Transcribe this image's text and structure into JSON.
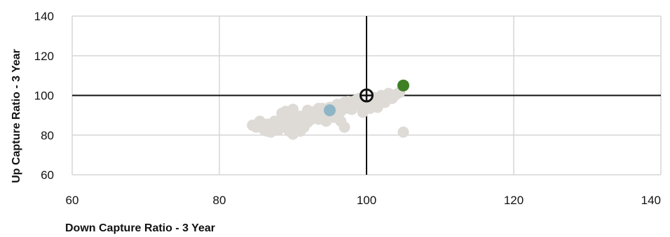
{
  "chart_data": {
    "type": "scatter",
    "title": "",
    "xlabel": "Down Capture Ratio - 3 Year",
    "ylabel": "Up Capture Ratio - 3 Year",
    "xlim": [
      60,
      140
    ],
    "ylim": [
      60,
      140
    ],
    "x_ticks": [
      60,
      80,
      100,
      120,
      140
    ],
    "y_ticks": [
      60,
      80,
      100,
      120,
      140
    ],
    "grid": true,
    "reference_lines": {
      "x": 100,
      "y": 100
    },
    "colors": {
      "peer": "#dedad6",
      "highlight_green": "#3f8024",
      "highlight_blue": "#8eb5c6",
      "benchmark": "#111111"
    },
    "highlight_points": [
      {
        "x": 105.0,
        "y": 105.0,
        "color": "#3f8024"
      },
      {
        "x": 95.0,
        "y": 92.5,
        "color": "#8eb5c6"
      }
    ],
    "benchmark_point": {
      "x": 100.0,
      "y": 100.0
    },
    "peer_points": [
      [
        84.5,
        85.0
      ],
      [
        85.0,
        84.0
      ],
      [
        85.5,
        87.0
      ],
      [
        86.0,
        83.0
      ],
      [
        86.5,
        82.0
      ],
      [
        86.5,
        85.5
      ],
      [
        87.0,
        81.5
      ],
      [
        87.0,
        84.5
      ],
      [
        87.5,
        83.5
      ],
      [
        87.5,
        87.0
      ],
      [
        88.0,
        82.5
      ],
      [
        88.0,
        85.5
      ],
      [
        88.5,
        88.5
      ],
      [
        89.0,
        84.0
      ],
      [
        89.0,
        86.5
      ],
      [
        89.5,
        82.0
      ],
      [
        89.5,
        88.0
      ],
      [
        90.0,
        85.5
      ],
      [
        90.0,
        89.0
      ],
      [
        90.5,
        84.5
      ],
      [
        90.5,
        87.0
      ],
      [
        91.0,
        86.0
      ],
      [
        91.0,
        89.5
      ],
      [
        91.5,
        88.0
      ],
      [
        91.5,
        84.0
      ],
      [
        92.0,
        89.0
      ],
      [
        92.0,
        86.5
      ],
      [
        92.5,
        90.5
      ],
      [
        92.5,
        88.0
      ],
      [
        93.0,
        89.0
      ],
      [
        93.0,
        92.0
      ],
      [
        93.5,
        90.0
      ],
      [
        93.5,
        88.0
      ],
      [
        94.0,
        91.0
      ],
      [
        94.0,
        93.5
      ],
      [
        94.5,
        90.0
      ],
      [
        95.0,
        94.0
      ],
      [
        95.5,
        91.5
      ],
      [
        96.0,
        93.0
      ],
      [
        96.0,
        95.5
      ],
      [
        96.5,
        92.0
      ],
      [
        97.0,
        94.5
      ],
      [
        97.0,
        96.5
      ],
      [
        97.5,
        93.5
      ],
      [
        97.5,
        97.0
      ],
      [
        98.0,
        95.5
      ],
      [
        98.0,
        93.0
      ],
      [
        98.5,
        97.5
      ],
      [
        98.5,
        95.0
      ],
      [
        99.0,
        96.0
      ],
      [
        99.0,
        98.5
      ],
      [
        99.5,
        94.5
      ],
      [
        100.0,
        96.5
      ],
      [
        100.5,
        98.0
      ],
      [
        101.0,
        97.0
      ],
      [
        101.0,
        99.0
      ],
      [
        101.5,
        95.5
      ],
      [
        102.0,
        98.0
      ],
      [
        102.0,
        100.0
      ],
      [
        102.5,
        96.5
      ],
      [
        103.0,
        99.0
      ],
      [
        103.0,
        101.0
      ],
      [
        103.5,
        98.5
      ],
      [
        104.0,
        100.5
      ],
      [
        104.5,
        101.5
      ],
      [
        88.5,
        91.0
      ],
      [
        90.0,
        93.0
      ],
      [
        92.0,
        92.5
      ],
      [
        93.5,
        93.5
      ],
      [
        89.0,
        92.0
      ],
      [
        90.0,
        80.5
      ],
      [
        97.0,
        84.0
      ],
      [
        96.5,
        87.0
      ],
      [
        105.0,
        81.5
      ],
      [
        95.5,
        89.0
      ],
      [
        99.5,
        91.5
      ],
      [
        100.5,
        93.5
      ],
      [
        101.5,
        94.0
      ],
      [
        94.5,
        87.0
      ],
      [
        91.0,
        82.0
      ]
    ]
  }
}
